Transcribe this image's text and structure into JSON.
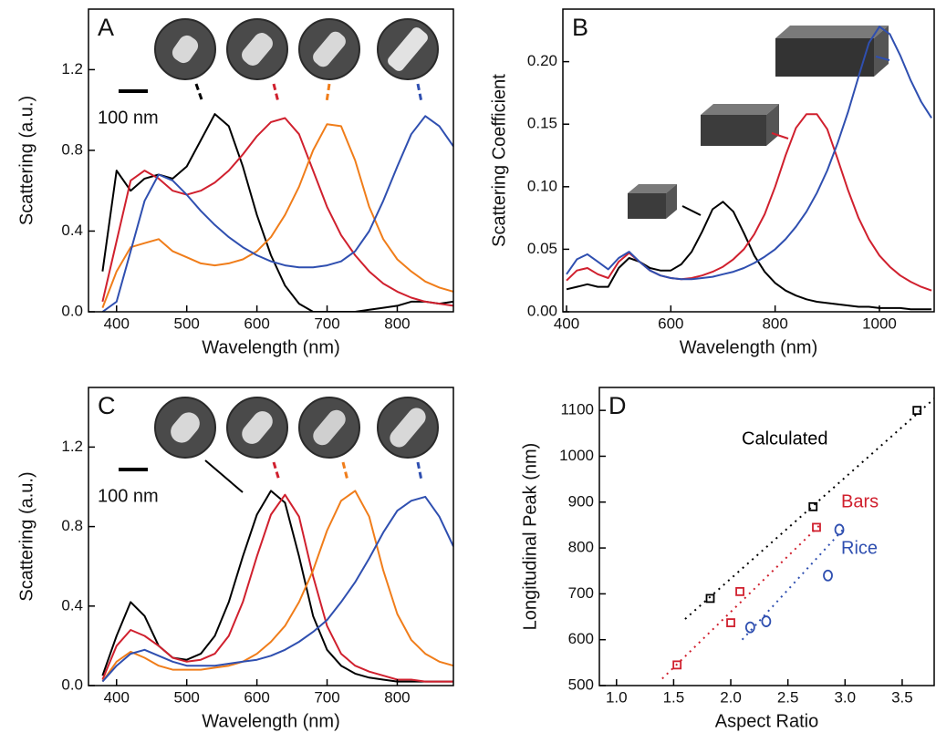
{
  "chart_data": [
    {
      "type": "line",
      "panel_label": "A",
      "scale_bar_label": "100 nm",
      "x_label": "Wavelength (nm)",
      "y_label": "Scattering (a.u.)",
      "xlim": [
        360,
        880
      ],
      "xticks": [
        400,
        500,
        600,
        700,
        800
      ],
      "ylim": [
        0,
        1.5
      ],
      "yticks": [
        {
          "value": 0,
          "label": "0.0"
        },
        0.4,
        0.8,
        1.2
      ],
      "x": [
        380,
        400,
        420,
        440,
        460,
        480,
        500,
        520,
        540,
        560,
        580,
        600,
        620,
        640,
        660,
        680,
        700,
        720,
        740,
        760,
        780,
        800,
        820,
        840,
        860,
        880
      ],
      "series": [
        {
          "color": "#000000",
          "values": [
            0.2,
            0.7,
            0.6,
            0.66,
            0.68,
            0.66,
            0.72,
            0.85,
            0.98,
            0.92,
            0.72,
            0.48,
            0.28,
            0.13,
            0.04,
            0.0,
            0.0,
            0.0,
            0.0,
            0.01,
            0.02,
            0.03,
            0.05,
            0.05,
            0.04,
            0.05
          ]
        },
        {
          "color": "#d0202e",
          "values": [
            0.05,
            0.35,
            0.65,
            0.7,
            0.66,
            0.6,
            0.58,
            0.6,
            0.64,
            0.7,
            0.78,
            0.87,
            0.94,
            0.96,
            0.88,
            0.7,
            0.52,
            0.38,
            0.28,
            0.2,
            0.14,
            0.1,
            0.07,
            0.05,
            0.04,
            0.03
          ]
        },
        {
          "color": "#f07d1a",
          "values": [
            0.02,
            0.2,
            0.32,
            0.34,
            0.36,
            0.3,
            0.27,
            0.24,
            0.23,
            0.24,
            0.26,
            0.3,
            0.37,
            0.48,
            0.62,
            0.8,
            0.93,
            0.92,
            0.75,
            0.52,
            0.36,
            0.26,
            0.2,
            0.15,
            0.12,
            0.1
          ]
        },
        {
          "color": "#2f4fb0",
          "values": [
            0.0,
            0.05,
            0.3,
            0.55,
            0.68,
            0.65,
            0.58,
            0.5,
            0.43,
            0.37,
            0.32,
            0.28,
            0.25,
            0.23,
            0.22,
            0.22,
            0.23,
            0.25,
            0.3,
            0.4,
            0.55,
            0.72,
            0.88,
            0.97,
            0.92,
            0.82
          ]
        }
      ]
    },
    {
      "type": "line",
      "panel_label": "B",
      "x_label": "Wavelength (nm)",
      "y_label": "Scattering Coefficient",
      "xlim": [
        393,
        1105
      ],
      "xticks": [
        400,
        600,
        800,
        1000
      ],
      "ylim": [
        0,
        0.242
      ],
      "yticks": [
        {
          "value": 0,
          "label": "0.00"
        },
        0.05,
        {
          "value": 0.1,
          "label": "0.10"
        },
        0.15,
        {
          "value": 0.2,
          "label": "0.20"
        }
      ],
      "x": [
        400,
        420,
        440,
        460,
        480,
        500,
        520,
        540,
        560,
        580,
        600,
        620,
        640,
        660,
        680,
        700,
        720,
        740,
        760,
        780,
        800,
        820,
        840,
        860,
        880,
        900,
        920,
        940,
        960,
        980,
        1000,
        1020,
        1040,
        1060,
        1080,
        1100
      ],
      "series": [
        {
          "color": "#000000",
          "values": [
            0.018,
            0.02,
            0.022,
            0.02,
            0.02,
            0.035,
            0.043,
            0.04,
            0.035,
            0.033,
            0.033,
            0.038,
            0.048,
            0.064,
            0.082,
            0.088,
            0.08,
            0.063,
            0.045,
            0.032,
            0.023,
            0.017,
            0.013,
            0.01,
            0.008,
            0.007,
            0.006,
            0.005,
            0.004,
            0.004,
            0.003,
            0.003,
            0.003,
            0.002,
            0.002,
            0.002
          ]
        },
        {
          "color": "#d0202e",
          "values": [
            0.025,
            0.033,
            0.035,
            0.03,
            0.027,
            0.04,
            0.047,
            0.04,
            0.033,
            0.029,
            0.027,
            0.026,
            0.027,
            0.029,
            0.032,
            0.036,
            0.042,
            0.05,
            0.062,
            0.078,
            0.1,
            0.125,
            0.147,
            0.158,
            0.158,
            0.146,
            0.122,
            0.097,
            0.075,
            0.058,
            0.045,
            0.036,
            0.029,
            0.024,
            0.02,
            0.017
          ]
        },
        {
          "color": "#2f4fb0",
          "values": [
            0.03,
            0.042,
            0.046,
            0.04,
            0.034,
            0.043,
            0.048,
            0.04,
            0.033,
            0.029,
            0.027,
            0.026,
            0.026,
            0.027,
            0.028,
            0.03,
            0.032,
            0.035,
            0.039,
            0.044,
            0.05,
            0.058,
            0.068,
            0.08,
            0.095,
            0.113,
            0.135,
            0.16,
            0.188,
            0.215,
            0.228,
            0.222,
            0.205,
            0.185,
            0.168,
            0.155
          ]
        }
      ]
    },
    {
      "type": "line",
      "panel_label": "C",
      "scale_bar_label": "100 nm",
      "x_label": "Wavelength (nm)",
      "y_label": "Scattering (a.u.)",
      "xlim": [
        360,
        880
      ],
      "xticks": [
        400,
        500,
        600,
        700,
        800
      ],
      "ylim": [
        0,
        1.5
      ],
      "yticks": [
        {
          "value": 0,
          "label": "0.0"
        },
        0.4,
        0.8,
        1.2
      ],
      "x": [
        380,
        400,
        420,
        440,
        460,
        480,
        500,
        520,
        540,
        560,
        580,
        600,
        620,
        640,
        660,
        680,
        700,
        720,
        740,
        760,
        780,
        800,
        820,
        840,
        860,
        880
      ],
      "series": [
        {
          "color": "#000000",
          "values": [
            0.05,
            0.25,
            0.42,
            0.35,
            0.2,
            0.14,
            0.13,
            0.16,
            0.25,
            0.42,
            0.65,
            0.86,
            0.98,
            0.92,
            0.65,
            0.35,
            0.18,
            0.1,
            0.06,
            0.04,
            0.03,
            0.02,
            0.02,
            0.02,
            0.02,
            0.02
          ]
        },
        {
          "color": "#d0202e",
          "values": [
            0.03,
            0.2,
            0.28,
            0.25,
            0.2,
            0.14,
            0.12,
            0.13,
            0.16,
            0.25,
            0.42,
            0.65,
            0.86,
            0.96,
            0.85,
            0.55,
            0.3,
            0.16,
            0.1,
            0.07,
            0.05,
            0.03,
            0.03,
            0.02,
            0.02,
            0.02
          ]
        },
        {
          "color": "#f07d1a",
          "values": [
            0.02,
            0.12,
            0.17,
            0.14,
            0.1,
            0.08,
            0.08,
            0.08,
            0.09,
            0.1,
            0.12,
            0.16,
            0.22,
            0.3,
            0.42,
            0.58,
            0.78,
            0.93,
            0.98,
            0.85,
            0.58,
            0.36,
            0.23,
            0.16,
            0.12,
            0.1
          ]
        },
        {
          "color": "#2f4fb0",
          "values": [
            0.02,
            0.1,
            0.16,
            0.18,
            0.15,
            0.12,
            0.1,
            0.1,
            0.1,
            0.11,
            0.12,
            0.13,
            0.15,
            0.18,
            0.22,
            0.27,
            0.33,
            0.42,
            0.52,
            0.64,
            0.77,
            0.88,
            0.93,
            0.95,
            0.85,
            0.7
          ]
        }
      ]
    },
    {
      "type": "scatter",
      "panel_label": "D",
      "x_label": "Aspect Ratio",
      "y_label": "Longitudinal Peak (nm)",
      "xlim": [
        0.85,
        3.78
      ],
      "xticks": [
        {
          "value": 1,
          "label": "1.0"
        },
        1.5,
        {
          "value": 2,
          "label": "2.0"
        },
        2.5,
        {
          "value": 3,
          "label": "3.0"
        },
        3.5
      ],
      "ylim": [
        500,
        1150
      ],
      "yticks": [
        500,
        600,
        700,
        800,
        900,
        1000,
        1100
      ],
      "series": [
        {
          "name": "Calculated",
          "color": "#000000",
          "marker": "square",
          "x": [
            1.82,
            2.72,
            3.63
          ],
          "values": [
            690,
            890,
            1100
          ],
          "fit_x": [
            1.6,
            3.8
          ],
          "fit_values": [
            645,
            1130
          ]
        },
        {
          "name": "Bars",
          "color": "#d0202e",
          "marker": "square",
          "x": [
            1.53,
            2.0,
            2.08,
            2.75
          ],
          "values": [
            545,
            637,
            705,
            845
          ],
          "fit_x": [
            1.4,
            2.8
          ],
          "fit_values": [
            515,
            855
          ]
        },
        {
          "name": "Rice",
          "color": "#2f4fb0",
          "marker": "circle",
          "x": [
            2.17,
            2.31,
            2.85,
            2.95
          ],
          "values": [
            627,
            640,
            740,
            840
          ],
          "fit_x": [
            2.1,
            3.0
          ],
          "fit_values": [
            600,
            845
          ]
        }
      ]
    }
  ]
}
